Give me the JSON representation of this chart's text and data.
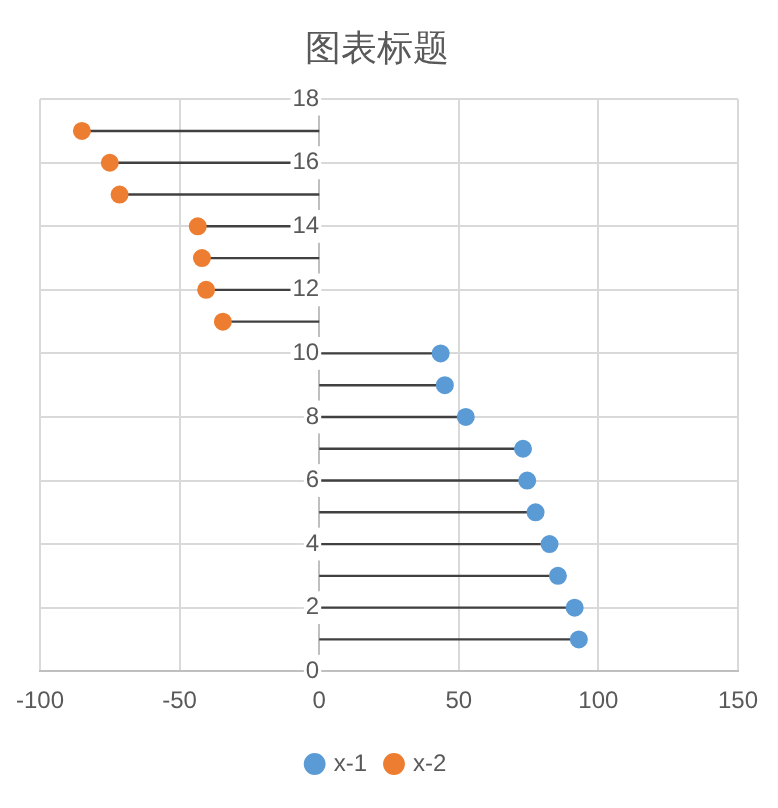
{
  "chart_data": {
    "type": "scatter",
    "title": "图表标题",
    "series": [
      {
        "name": "x-1",
        "color": "#5b9bd5",
        "x": [
          93,
          91.5,
          85.5,
          82.5,
          77.5,
          74.5,
          73,
          52.5,
          45,
          43.5
        ],
        "values": [
          1,
          2,
          3,
          4,
          5,
          6,
          7,
          8,
          9,
          10
        ],
        "xerrors": [
          [
            0,
            93
          ],
          [
            0,
            91.5
          ],
          [
            0,
            85.5
          ],
          [
            0,
            82.5
          ],
          [
            0,
            77.5
          ],
          [
            0,
            74.5
          ],
          [
            0,
            73
          ],
          [
            0,
            52.5
          ],
          [
            0,
            45
          ],
          [
            0,
            43.5
          ]
        ]
      },
      {
        "name": "x-2",
        "color": "#ed7d31",
        "x": [
          -34.5,
          -40.5,
          -42,
          -43.5,
          -71.5,
          -75,
          -85
        ],
        "values": [
          11,
          12,
          13,
          14,
          15,
          16,
          17
        ],
        "xerrors": [
          [
            -34.5,
            0
          ],
          [
            -40.5,
            0
          ],
          [
            -42,
            0
          ],
          [
            -43.5,
            0
          ],
          [
            -71.5,
            0
          ],
          [
            -75,
            0
          ],
          [
            -85,
            0
          ]
        ]
      }
    ],
    "xlim": [
      -100,
      150
    ],
    "xticks": [
      -100,
      -50,
      0,
      50,
      100,
      150
    ],
    "ylim": [
      0,
      18
    ],
    "yticks": [
      0,
      2,
      4,
      6,
      8,
      10,
      12,
      14,
      16,
      18
    ],
    "grid": true,
    "legend": "bottom",
    "marker": "circle"
  }
}
